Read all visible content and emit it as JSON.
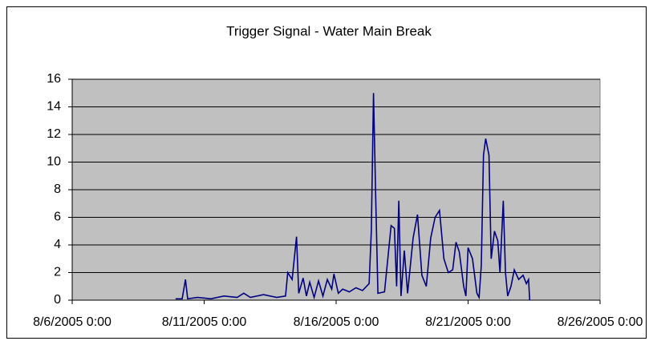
{
  "chart_data": {
    "type": "line",
    "title": "Trigger Signal  - Water Main Break",
    "x": [
      "8/9/2005 22:00",
      "8/10/2005 4:00",
      "8/10/2005 7:00",
      "8/10/2005 9:00",
      "8/10/2005 18:00",
      "8/11/2005 6:00",
      "8/11/2005 18:00",
      "8/12/2005 6:00",
      "8/12/2005 12:00",
      "8/12/2005 18:00",
      "8/13/2005 6:00",
      "8/13/2005 18:00",
      "8/14/2005 2:00",
      "8/14/2005 4:00",
      "8/14/2005 8:00",
      "8/14/2005 12:00",
      "8/14/2005 14:00",
      "8/14/2005 18:00",
      "8/14/2005 21:00",
      "8/15/2005 0:00",
      "8/15/2005 4:00",
      "8/15/2005 8:00",
      "8/15/2005 12:00",
      "8/15/2005 16:00",
      "8/15/2005 20:00",
      "8/15/2005 22:00",
      "8/16/2005 2:00",
      "8/16/2005 6:00",
      "8/16/2005 12:00",
      "8/16/2005 18:00",
      "8/17/2005 0:00",
      "8/17/2005 6:00",
      "8/17/2005 8:00",
      "8/17/2005 10:00",
      "8/17/2005 12:00",
      "8/17/2005 14:00",
      "8/17/2005 20:00",
      "8/18/2005 2:00",
      "8/18/2005 5:00",
      "8/18/2005 7:00",
      "8/18/2005 9:00",
      "8/18/2005 11:00",
      "8/18/2005 14:00",
      "8/18/2005 17:00",
      "8/18/2005 22:00",
      "8/19/2005 2:00",
      "8/19/2005 6:00",
      "8/19/2005 10:00",
      "8/19/2005 14:00",
      "8/19/2005 18:00",
      "8/19/2005 22:00",
      "8/20/2005 2:00",
      "8/20/2005 6:00",
      "8/20/2005 10:00",
      "8/20/2005 13:00",
      "8/20/2005 16:00",
      "8/20/2005 20:00",
      "8/20/2005 22:00",
      "8/21/2005 0:00",
      "8/21/2005 4:00",
      "8/21/2005 8:00",
      "8/21/2005 10:00",
      "8/21/2005 12:00",
      "8/21/2005 14:00",
      "8/21/2005 16:00",
      "8/21/2005 19:00",
      "8/21/2005 21:00",
      "8/22/2005 0:00",
      "8/22/2005 3:00",
      "8/22/2005 5:00",
      "8/22/2005 8:00",
      "8/22/2005 10:00",
      "8/22/2005 12:00",
      "8/22/2005 15:00",
      "8/22/2005 18:00",
      "8/22/2005 22:00",
      "8/23/2005 2:00",
      "8/23/2005 5:00",
      "8/23/2005 7:00",
      "8/23/2005 8:00"
    ],
    "values": [
      0.1,
      0.1,
      1.5,
      0.1,
      0.2,
      0.1,
      0.3,
      0.2,
      0.5,
      0.2,
      0.4,
      0.2,
      0.3,
      2,
      1.5,
      4.6,
      0.5,
      1.6,
      0.3,
      1.3,
      0.2,
      1.4,
      0.3,
      1.5,
      0.8,
      1.9,
      0.5,
      0.8,
      0.6,
      0.9,
      0.7,
      1.2,
      5,
      15,
      7.4,
      0.5,
      0.6,
      5.4,
      5.2,
      1,
      7.2,
      0.3,
      3.6,
      0.5,
      4.5,
      6.2,
      1.8,
      1,
      4.5,
      6,
      6.5,
      3,
      2,
      2.2,
      4.2,
      3.5,
      1,
      0.3,
      3.8,
      3,
      0.5,
      0.2,
      2.5,
      10.5,
      11.7,
      10.5,
      3,
      5,
      4.3,
      2,
      7.2,
      2,
      0.3,
      1,
      2.2,
      1.5,
      1.8,
      1.2,
      1.5,
      0
    ],
    "color": "#000080",
    "xlim": [
      "8/6/2005 0:00",
      "8/26/2005 0:00"
    ],
    "xticks": [
      "8/6/2005 0:00",
      "8/11/2005 0:00",
      "8/16/2005 0:00",
      "8/21/2005 0:00",
      "8/26/2005 0:00"
    ],
    "ylim": [
      0,
      16
    ],
    "yticks": [
      0,
      2,
      4,
      6,
      8,
      10,
      12,
      14,
      16
    ],
    "grid": true
  }
}
